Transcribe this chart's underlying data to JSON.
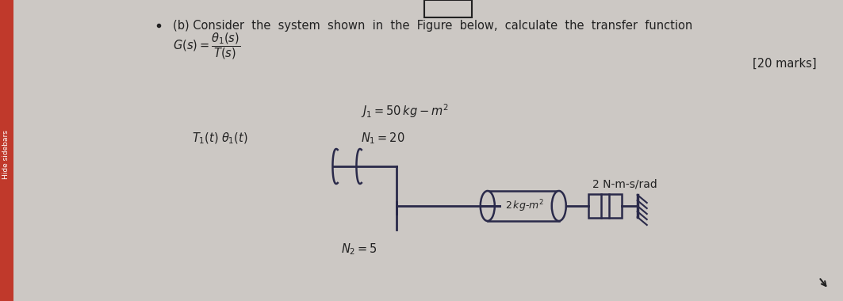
{
  "bg_color": "#ccc8c4",
  "sidebar_color": "#c0392b",
  "sidebar_text": "Hide sidebars",
  "title_line1": "(b) Consider  the  system  shown  in  the  Figure  below,  calculate  the  transfer  function",
  "title_line2_right": "[20 marks]",
  "param1": "$J_1 = 50\\,kg - m^2$",
  "param2": "$N_1 = 20$",
  "param3": "$T_1(t)\\;\\theta_1(t)$",
  "param4": "$N_2 = 5$",
  "param5": "2 N-m-s/rad",
  "param6": "2 kg-m²",
  "text_color": "#222222",
  "diagram_color": "#2a2a4a",
  "font_size": 10.5
}
